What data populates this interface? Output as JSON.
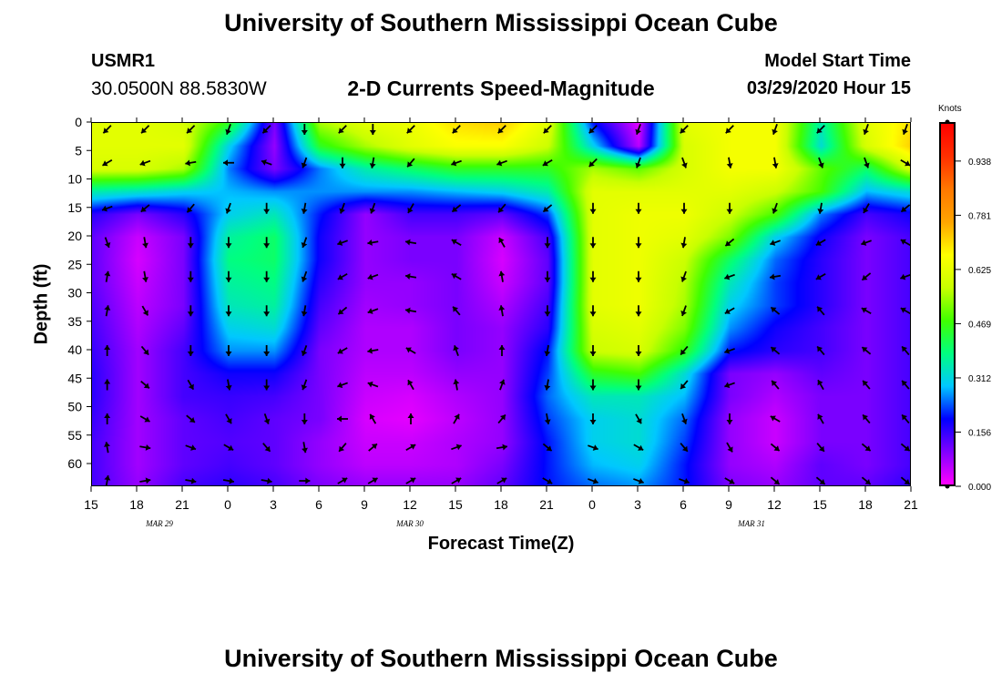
{
  "header": {
    "title": "University of Southern Mississippi Ocean Cube",
    "station": "USMR1",
    "coords": "30.0500N 88.5830W",
    "subtitle": "2-D Currents Speed-Magnitude",
    "model_label": "Model Start Time",
    "model_time": "03/29/2020 Hour 15",
    "footer_title": "University of Southern Mississippi Ocean Cube"
  },
  "colorbar": {
    "unit": "Knots",
    "labels": [
      "0.000",
      "0.156",
      "0.312",
      "0.469",
      "0.625",
      "0.781",
      "0.938"
    ],
    "colors": [
      "#ff00ff",
      "#8000ff",
      "#0000ff",
      "#00c8ff",
      "#00ff80",
      "#40ff00",
      "#c8ff00",
      "#ffff00",
      "#ffa500",
      "#ff7800",
      "#ff3000",
      "#ff0000"
    ]
  },
  "chart_data": {
    "type": "heatmap",
    "title": "2-D Currents Speed-Magnitude",
    "xlabel": "Forecast Time(Z)",
    "ylabel": "Depth (ft)",
    "x_ticks": [
      "15",
      "18",
      "21",
      "0",
      "3",
      "6",
      "9",
      "12",
      "15",
      "18",
      "21",
      "0",
      "3",
      "6",
      "9",
      "12",
      "15",
      "18",
      "21"
    ],
    "x_hours": [
      0,
      3,
      6,
      9,
      12,
      15,
      18,
      21,
      24,
      27,
      30,
      33,
      36,
      39,
      42,
      45,
      48,
      51,
      54
    ],
    "date_labels": [
      {
        "text": "MAR  29",
        "hour": 4.5
      },
      {
        "text": "MAR  30",
        "hour": 21
      },
      {
        "text": "MAR  31",
        "hour": 43.5
      }
    ],
    "y_ticks": [
      "0",
      "5",
      "10",
      "15",
      "20",
      "25",
      "30",
      "35",
      "40",
      "45",
      "50",
      "55",
      "60"
    ],
    "ylim": [
      64,
      0
    ],
    "xlim": [
      0,
      54
    ],
    "zlim": [
      0,
      1.05
    ],
    "depths": [
      0,
      4,
      8,
      12,
      16,
      20,
      24,
      28,
      32,
      36,
      40,
      44,
      48,
      52,
      56,
      60,
      64
    ],
    "hours": [
      0,
      3,
      6,
      9,
      12,
      15,
      18,
      21,
      24,
      27,
      30,
      33,
      36,
      39,
      42,
      45,
      48,
      51,
      54
    ],
    "speed": [
      [
        0.62,
        0.62,
        0.6,
        0.45,
        0.1,
        0.55,
        0.62,
        0.64,
        0.7,
        0.72,
        0.62,
        0.2,
        0.02,
        0.62,
        0.65,
        0.65,
        0.35,
        0.62,
        0.7
      ],
      [
        0.62,
        0.62,
        0.62,
        0.3,
        0.08,
        0.45,
        0.55,
        0.62,
        0.66,
        0.66,
        0.58,
        0.3,
        0.05,
        0.6,
        0.65,
        0.65,
        0.32,
        0.6,
        0.72
      ],
      [
        0.6,
        0.6,
        0.55,
        0.25,
        0.1,
        0.25,
        0.35,
        0.4,
        0.45,
        0.45,
        0.45,
        0.55,
        0.5,
        0.6,
        0.65,
        0.65,
        0.5,
        0.4,
        0.6
      ],
      [
        0.35,
        0.33,
        0.3,
        0.28,
        0.26,
        0.26,
        0.26,
        0.26,
        0.28,
        0.3,
        0.35,
        0.62,
        0.62,
        0.62,
        0.62,
        0.58,
        0.48,
        0.28,
        0.32
      ],
      [
        0.16,
        0.1,
        0.16,
        0.3,
        0.34,
        0.2,
        0.08,
        0.14,
        0.14,
        0.12,
        0.22,
        0.62,
        0.64,
        0.64,
        0.58,
        0.48,
        0.25,
        0.14,
        0.18
      ],
      [
        0.12,
        0.04,
        0.1,
        0.36,
        0.4,
        0.18,
        0.08,
        0.1,
        0.1,
        0.04,
        0.14,
        0.62,
        0.64,
        0.62,
        0.52,
        0.3,
        0.18,
        0.1,
        0.14
      ],
      [
        0.12,
        0.03,
        0.1,
        0.38,
        0.4,
        0.18,
        0.08,
        0.1,
        0.1,
        0.03,
        0.12,
        0.62,
        0.64,
        0.58,
        0.4,
        0.24,
        0.16,
        0.1,
        0.14
      ],
      [
        0.12,
        0.04,
        0.1,
        0.36,
        0.38,
        0.16,
        0.08,
        0.08,
        0.1,
        0.04,
        0.12,
        0.62,
        0.64,
        0.56,
        0.34,
        0.22,
        0.16,
        0.1,
        0.14
      ],
      [
        0.13,
        0.05,
        0.1,
        0.34,
        0.36,
        0.14,
        0.07,
        0.08,
        0.1,
        0.06,
        0.14,
        0.62,
        0.64,
        0.55,
        0.3,
        0.22,
        0.16,
        0.1,
        0.14
      ],
      [
        0.14,
        0.06,
        0.12,
        0.3,
        0.32,
        0.12,
        0.06,
        0.06,
        0.1,
        0.08,
        0.16,
        0.6,
        0.62,
        0.52,
        0.26,
        0.18,
        0.14,
        0.1,
        0.14
      ],
      [
        0.15,
        0.07,
        0.14,
        0.26,
        0.26,
        0.1,
        0.06,
        0.06,
        0.1,
        0.08,
        0.2,
        0.58,
        0.6,
        0.46,
        0.2,
        0.16,
        0.14,
        0.1,
        0.14
      ],
      [
        0.16,
        0.07,
        0.14,
        0.18,
        0.18,
        0.1,
        0.05,
        0.05,
        0.08,
        0.08,
        0.22,
        0.45,
        0.48,
        0.32,
        0.1,
        0.08,
        0.12,
        0.1,
        0.14
      ],
      [
        0.16,
        0.07,
        0.14,
        0.15,
        0.14,
        0.1,
        0.04,
        0.03,
        0.06,
        0.08,
        0.24,
        0.34,
        0.34,
        0.28,
        0.1,
        0.06,
        0.1,
        0.1,
        0.14
      ],
      [
        0.15,
        0.07,
        0.12,
        0.14,
        0.12,
        0.1,
        0.03,
        0.02,
        0.05,
        0.08,
        0.22,
        0.3,
        0.32,
        0.24,
        0.08,
        0.04,
        0.1,
        0.1,
        0.14
      ],
      [
        0.14,
        0.07,
        0.12,
        0.13,
        0.12,
        0.08,
        0.04,
        0.04,
        0.06,
        0.08,
        0.2,
        0.3,
        0.32,
        0.22,
        0.08,
        0.04,
        0.1,
        0.1,
        0.14
      ],
      [
        0.14,
        0.07,
        0.12,
        0.14,
        0.12,
        0.08,
        0.05,
        0.05,
        0.06,
        0.1,
        0.2,
        0.28,
        0.3,
        0.2,
        0.08,
        0.06,
        0.12,
        0.1,
        0.14
      ],
      [
        0.14,
        0.08,
        0.14,
        0.16,
        0.14,
        0.1,
        0.08,
        0.08,
        0.08,
        0.12,
        0.2,
        0.24,
        0.26,
        0.2,
        0.1,
        0.08,
        0.12,
        0.12,
        0.16
      ]
    ],
    "vector_hours": [
      1,
      3.5,
      6.5,
      9,
      11.5,
      14,
      16.5,
      18.5,
      21,
      24,
      27,
      30,
      33,
      36,
      39,
      42,
      45,
      48,
      51,
      54
    ],
    "vector_depths": [
      0,
      7,
      15,
      21,
      27,
      33,
      40,
      46,
      52,
      57,
      63
    ],
    "vector_angles": [
      [
        225,
        225,
        225,
        200,
        225,
        180,
        225,
        180,
        225,
        225,
        225,
        225,
        225,
        200,
        225,
        225,
        200,
        225,
        200,
        200
      ],
      [
        240,
        250,
        260,
        270,
        290,
        200,
        180,
        190,
        220,
        250,
        250,
        240,
        225,
        200,
        160,
        170,
        170,
        160,
        160,
        120
      ],
      [
        250,
        230,
        220,
        200,
        180,
        190,
        200,
        200,
        210,
        230,
        220,
        230,
        180,
        180,
        180,
        180,
        200,
        190,
        210,
        230
      ],
      [
        160,
        170,
        180,
        180,
        180,
        200,
        250,
        260,
        280,
        300,
        330,
        180,
        180,
        180,
        190,
        230,
        250,
        240,
        250,
        300
      ],
      [
        10,
        170,
        180,
        180,
        180,
        200,
        240,
        250,
        280,
        300,
        350,
        180,
        180,
        180,
        200,
        250,
        260,
        240,
        230,
        250
      ],
      [
        10,
        150,
        180,
        180,
        180,
        190,
        230,
        250,
        280,
        320,
        350,
        180,
        180,
        180,
        200,
        240,
        310,
        320,
        300,
        300
      ],
      [
        0,
        140,
        180,
        180,
        180,
        200,
        240,
        260,
        300,
        340,
        0,
        190,
        180,
        180,
        220,
        250,
        310,
        320,
        310,
        320
      ],
      [
        0,
        130,
        150,
        170,
        180,
        200,
        250,
        290,
        330,
        350,
        20,
        190,
        180,
        180,
        220,
        250,
        320,
        330,
        320,
        320
      ],
      [
        0,
        120,
        130,
        150,
        160,
        180,
        270,
        330,
        0,
        30,
        40,
        170,
        180,
        150,
        160,
        180,
        300,
        330,
        320,
        320
      ],
      [
        350,
        100,
        110,
        120,
        140,
        170,
        220,
        50,
        60,
        70,
        80,
        130,
        110,
        120,
        140,
        150,
        130,
        140,
        130,
        130
      ],
      [
        10,
        80,
        100,
        100,
        100,
        90,
        60,
        60,
        60,
        60,
        60,
        120,
        110,
        110,
        110,
        120,
        130,
        130,
        130,
        130
      ]
    ]
  }
}
